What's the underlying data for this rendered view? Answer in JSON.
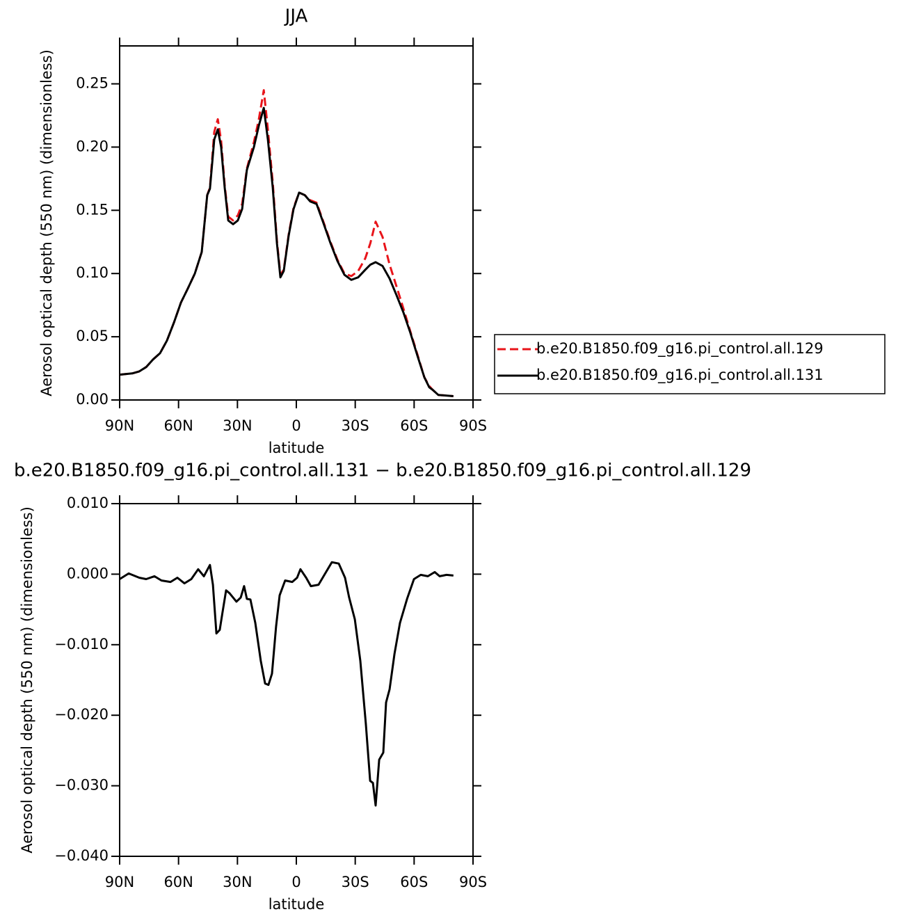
{
  "chart_data": [
    {
      "type": "line",
      "title": "JJA",
      "xlabel": "latitude",
      "ylabel": "Aerosol optical depth (550 nm) (dimensionless)",
      "xlim": [
        90,
        -90
      ],
      "xticks": [
        {
          "value": 90,
          "label": "90N"
        },
        {
          "value": 60,
          "label": "60N"
        },
        {
          "value": 30,
          "label": "30N"
        },
        0,
        {
          "value": -30,
          "label": "30S"
        },
        {
          "value": -60,
          "label": "60S"
        },
        {
          "value": -90,
          "label": "90S"
        }
      ],
      "ylim": [
        0,
        0.28
      ],
      "yticks": [
        {
          "value": 0,
          "label": "0.00"
        },
        {
          "value": 0.05,
          "label": "0.05"
        },
        {
          "value": 0.1,
          "label": "0.10"
        },
        {
          "value": 0.15,
          "label": "0.15"
        },
        {
          "value": 0.2,
          "label": "0.20"
        },
        {
          "value": 0.25,
          "label": "0.25"
        }
      ],
      "legend": "right",
      "x": [
        90,
        83.6,
        80,
        76.5,
        73,
        69.4,
        65.9,
        62.4,
        58.8,
        55.3,
        51.7,
        48.2,
        45.4,
        44,
        41.8,
        40,
        38.3,
        36.5,
        34.7,
        32.2,
        29.8,
        27.6,
        25.2,
        21.6,
        19.1,
        16.6,
        14.5,
        12,
        9.9,
        8.1,
        6.4,
        3.9,
        1.4,
        -1.4,
        -4.3,
        -7.1,
        -10.3,
        -13.8,
        -17.4,
        -20.9,
        -24.5,
        -28,
        -31.5,
        -35.1,
        -37.7,
        -40.4,
        -43.9,
        -47.5,
        -51,
        -54.6,
        -58.1,
        -61.7,
        -65.2,
        -67.7,
        -69.5,
        -72.3,
        -80
      ],
      "series": [
        {
          "name": "b.e20.B1850.f09_g16.pi_control.all.129",
          "color": "#e8141a",
          "dashed": true,
          "values": [
            0.02,
            0.021,
            0.0226,
            0.026,
            0.032,
            0.037,
            0.047,
            0.061,
            0.077,
            0.088,
            0.1,
            0.117,
            0.162,
            0.168,
            0.212,
            0.222,
            0.205,
            0.17,
            0.145,
            0.142,
            0.146,
            0.155,
            0.183,
            0.204,
            0.222,
            0.245,
            0.214,
            0.172,
            0.126,
            0.099,
            0.103,
            0.131,
            0.152,
            0.164,
            0.162,
            0.158,
            0.156,
            0.141,
            0.125,
            0.111,
            0.1,
            0.098,
            0.102,
            0.112,
            0.124,
            0.141,
            0.129,
            0.107,
            0.09,
            0.072,
            0.054,
            0.036,
            0.018,
            0.011,
            0.008,
            0.004,
            0.003
          ]
        },
        {
          "name": "b.e20.B1850.f09_g16.pi_control.all.131",
          "color": "#000000",
          "dashed": false,
          "values": [
            0.02,
            0.021,
            0.0226,
            0.026,
            0.032,
            0.037,
            0.047,
            0.061,
            0.077,
            0.088,
            0.1,
            0.117,
            0.162,
            0.167,
            0.206,
            0.214,
            0.2,
            0.168,
            0.142,
            0.139,
            0.142,
            0.151,
            0.182,
            0.2,
            0.217,
            0.231,
            0.206,
            0.168,
            0.124,
            0.097,
            0.102,
            0.13,
            0.151,
            0.164,
            0.162,
            0.157,
            0.155,
            0.14,
            0.124,
            0.11,
            0.099,
            0.095,
            0.097,
            0.103,
            0.107,
            0.109,
            0.106,
            0.096,
            0.083,
            0.069,
            0.053,
            0.035,
            0.018,
            0.01,
            0.008,
            0.004,
            0.003
          ]
        }
      ]
    },
    {
      "type": "line",
      "title": "b.e20.B1850.f09_g16.pi_control.all.131 − b.e20.B1850.f09_g16.pi_control.all.129",
      "xlabel": "latitude",
      "ylabel": "Aerosol optical depth (550 nm) (dimensionless)",
      "xlim": [
        90,
        -90
      ],
      "xticks": [
        {
          "value": 90,
          "label": "90N"
        },
        {
          "value": 60,
          "label": "60N"
        },
        {
          "value": 30,
          "label": "30N"
        },
        0,
        {
          "value": -30,
          "label": "30S"
        },
        {
          "value": -60,
          "label": "60S"
        },
        {
          "value": -90,
          "label": "90S"
        }
      ],
      "ylim": [
        -0.04,
        0.01
      ],
      "yticks": [
        {
          "value": -0.04,
          "label": "−0.040"
        },
        {
          "value": -0.03,
          "label": "−0.030"
        },
        {
          "value": -0.02,
          "label": "−0.020"
        },
        {
          "value": -0.01,
          "label": "−0.010"
        },
        {
          "value": 0,
          "label": "0.000"
        },
        {
          "value": 0.01,
          "label": "0.010"
        }
      ],
      "x": [
        90,
        85.4,
        80,
        76.5,
        72.3,
        68.7,
        64.1,
        60.6,
        57,
        53.5,
        50,
        47.1,
        44,
        42.5,
        40.7,
        39,
        37.6,
        35.8,
        34,
        30.5,
        28.3,
        26.6,
        25.2,
        23.4,
        20.9,
        18.1,
        15.9,
        14.2,
        12.4,
        10.3,
        8.5,
        5.7,
        2.1,
        -0.4,
        -2.1,
        -5,
        -7.4,
        -11.3,
        -14.5,
        -18.1,
        -21.6,
        -24.8,
        -26.9,
        -29.8,
        -32.6,
        -35.4,
        -37.6,
        -39,
        -40.4,
        -42.2,
        -44.3,
        -45.7,
        -47.5,
        -50,
        -52.8,
        -56.4,
        -59.9,
        -63.4,
        -67,
        -70.5,
        -73,
        -76.5,
        -80
      ],
      "series": [
        {
          "color": "#000000",
          "dashed": false,
          "values": [
            -0.0007,
            0.0001,
            -0.0005,
            -0.0007,
            -0.0003,
            -0.0009,
            -0.0011,
            -0.0005,
            -0.0013,
            -0.0007,
            0.0007,
            -0.0003,
            0.0013,
            -0.0015,
            -0.0084,
            -0.0079,
            -0.0054,
            -0.0023,
            -0.0027,
            -0.0039,
            -0.0033,
            -0.0017,
            -0.0035,
            -0.0036,
            -0.0069,
            -0.0123,
            -0.0155,
            -0.0157,
            -0.0141,
            -0.0074,
            -0.003,
            -0.0009,
            -0.0011,
            -0.0005,
            0.0007,
            -0.0005,
            -0.0017,
            -0.0015,
            0,
            0.0017,
            0.0015,
            -0.0005,
            -0.0033,
            -0.0064,
            -0.0123,
            -0.0212,
            -0.0293,
            -0.0296,
            -0.0328,
            -0.0263,
            -0.0253,
            -0.0182,
            -0.0163,
            -0.0113,
            -0.0069,
            -0.0035,
            -0.0007,
            -0.0001,
            -0.0003,
            0.0003,
            -0.0003,
            -0.0001,
            -0.0002
          ]
        }
      ]
    }
  ]
}
